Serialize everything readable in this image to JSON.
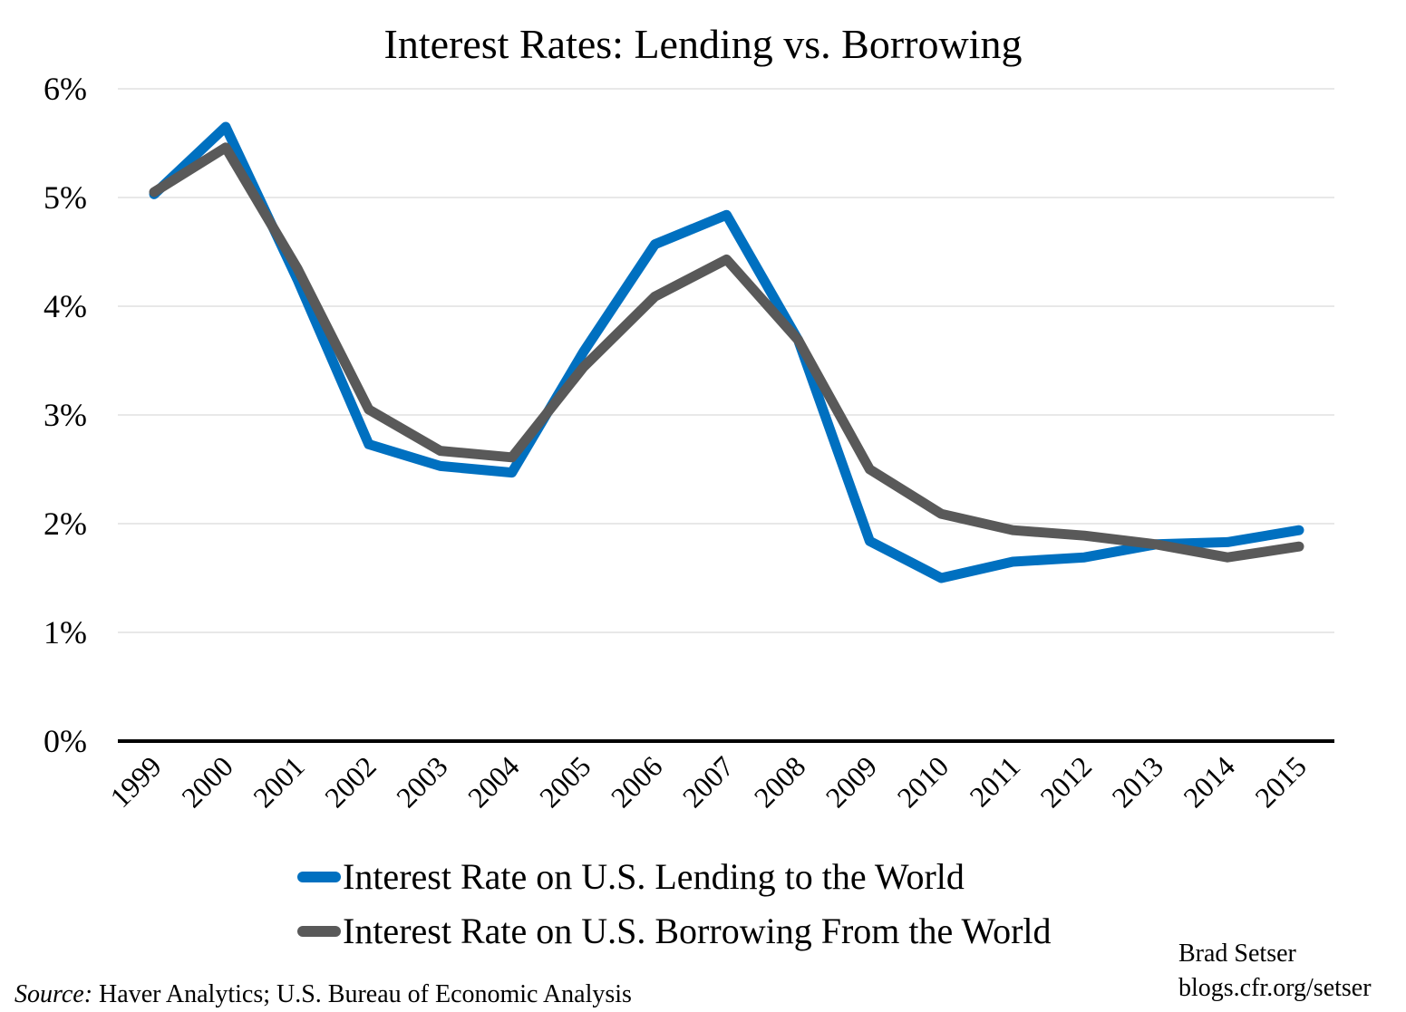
{
  "chart_data": {
    "type": "line",
    "title": "Interest Rates: Lending vs. Borrowing",
    "xlabel": "",
    "ylabel": "",
    "categories": [
      "1999",
      "2000",
      "2001",
      "2002",
      "2003",
      "2004",
      "2005",
      "2006",
      "2007",
      "2008",
      "2009",
      "2010",
      "2011",
      "2012",
      "2013",
      "2014",
      "2015"
    ],
    "ylim": [
      0,
      6
    ],
    "yticks": [
      "0%",
      "1%",
      "2%",
      "3%",
      "4%",
      "5%",
      "6%"
    ],
    "grid": true,
    "legend_position": "bottom",
    "series": [
      {
        "name": "Interest Rate on U.S. Lending to the World",
        "color": "#0070c0",
        "values": [
          5.03,
          5.65,
          4.25,
          2.73,
          2.53,
          2.47,
          3.58,
          4.57,
          4.84,
          3.69,
          1.84,
          1.5,
          1.65,
          1.69,
          1.81,
          1.83,
          1.94
        ]
      },
      {
        "name": "Interest Rate on U.S. Borrowing From the World",
        "color": "#595959",
        "values": [
          5.05,
          5.46,
          4.35,
          3.05,
          2.67,
          2.61,
          3.44,
          4.09,
          4.43,
          3.69,
          2.5,
          2.09,
          1.94,
          1.89,
          1.81,
          1.69,
          1.79
        ]
      }
    ]
  },
  "source_label": "Source:",
  "source_text": " Haver Analytics; U.S. Bureau of Economic Analysis",
  "credit_name": "Brad Setser",
  "credit_url": "blogs.cfr.org/setser"
}
